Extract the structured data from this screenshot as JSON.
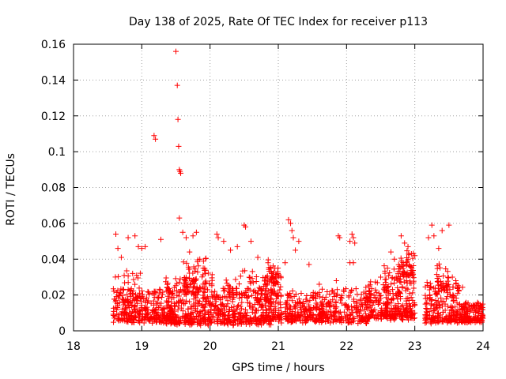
{
  "chart_data": {
    "type": "scatter",
    "title": "Day 138 of 2025, Rate Of TEC Index for receiver p113",
    "xlabel": "GPS time / hours",
    "ylabel": "ROTI / TECUs",
    "xlim": [
      18,
      24
    ],
    "ylim": [
      0,
      0.16
    ],
    "xticks": [
      18,
      19,
      20,
      21,
      22,
      23,
      24
    ],
    "yticks": [
      0,
      0.02,
      0.04,
      0.06,
      0.08,
      0.1,
      0.12,
      0.14,
      0.16
    ],
    "xtick_labels": [
      "18",
      "19",
      "20",
      "21",
      "22",
      "23",
      "24"
    ],
    "ytick_labels": [
      "0",
      "0.02",
      "0.04",
      "0.06",
      "0.08",
      "0.1",
      "0.12",
      "0.14",
      "0.16"
    ],
    "grid": true,
    "marker": "+",
    "marker_color": "#ff0000",
    "series": [
      {
        "name": "ROTI",
        "points": [
          [
            18.62,
            0.054
          ],
          [
            18.65,
            0.046
          ],
          [
            18.7,
            0.041
          ],
          [
            18.8,
            0.052
          ],
          [
            18.9,
            0.053
          ],
          [
            18.95,
            0.047
          ],
          [
            19.0,
            0.046
          ],
          [
            19.05,
            0.047
          ],
          [
            19.18,
            0.109
          ],
          [
            19.2,
            0.107
          ],
          [
            19.28,
            0.051
          ],
          [
            19.5,
            0.156
          ],
          [
            19.52,
            0.137
          ],
          [
            19.53,
            0.118
          ],
          [
            19.54,
            0.103
          ],
          [
            19.55,
            0.09
          ],
          [
            19.56,
            0.089
          ],
          [
            19.57,
            0.088
          ],
          [
            19.55,
            0.063
          ],
          [
            19.6,
            0.055
          ],
          [
            19.65,
            0.052
          ],
          [
            19.7,
            0.044
          ],
          [
            19.75,
            0.053
          ],
          [
            19.8,
            0.055
          ],
          [
            19.85,
            0.04
          ],
          [
            19.9,
            0.035
          ],
          [
            20.1,
            0.054
          ],
          [
            20.12,
            0.052
          ],
          [
            20.2,
            0.05
          ],
          [
            20.3,
            0.045
          ],
          [
            20.4,
            0.047
          ],
          [
            20.5,
            0.059
          ],
          [
            20.52,
            0.058
          ],
          [
            20.6,
            0.05
          ],
          [
            20.7,
            0.041
          ],
          [
            20.85,
            0.038
          ],
          [
            20.95,
            0.035
          ],
          [
            21.15,
            0.062
          ],
          [
            21.18,
            0.06
          ],
          [
            21.2,
            0.056
          ],
          [
            21.22,
            0.052
          ],
          [
            21.25,
            0.045
          ],
          [
            21.3,
            0.05
          ],
          [
            21.1,
            0.038
          ],
          [
            21.45,
            0.037
          ],
          [
            21.6,
            0.026
          ],
          [
            21.85,
            0.028
          ],
          [
            21.88,
            0.053
          ],
          [
            21.9,
            0.052
          ],
          [
            22.05,
            0.05
          ],
          [
            22.08,
            0.054
          ],
          [
            22.1,
            0.052
          ],
          [
            22.12,
            0.049
          ],
          [
            22.05,
            0.038
          ],
          [
            22.1,
            0.038
          ],
          [
            22.5,
            0.03
          ],
          [
            22.6,
            0.035
          ],
          [
            22.65,
            0.044
          ],
          [
            22.7,
            0.04
          ],
          [
            22.8,
            0.053
          ],
          [
            22.85,
            0.049
          ],
          [
            22.9,
            0.047
          ],
          [
            22.95,
            0.043
          ],
          [
            23.0,
            0.042
          ],
          [
            23.2,
            0.052
          ],
          [
            23.25,
            0.059
          ],
          [
            23.28,
            0.053
          ],
          [
            23.35,
            0.046
          ],
          [
            23.4,
            0.056
          ],
          [
            23.5,
            0.059
          ],
          [
            23.55,
            0.03
          ],
          [
            23.6,
            0.028
          ]
        ]
      }
    ]
  }
}
